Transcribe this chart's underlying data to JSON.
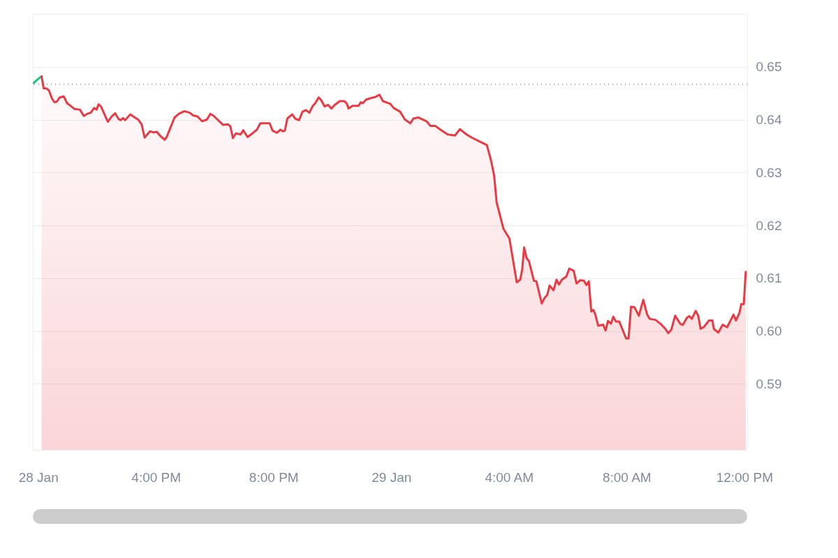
{
  "chart_data": {
    "type": "line",
    "series": [
      {
        "color": "#16c784",
        "x": [
          "--01-28T11:50",
          "--01-28T12:00",
          "--01-28T12:07"
        ],
        "values": [
          0.6469,
          0.6477,
          0.6482
        ]
      },
      {
        "type": "area",
        "color": "#ea3943",
        "x": [
          "--01-28T12:07",
          "--01-28T12:11",
          "--01-28T12:17",
          "--01-28T12:22",
          "--01-28T12:28",
          "--01-28T12:33",
          "--01-28T12:38",
          "--01-28T12:44",
          "--01-28T12:52",
          "--01-28T12:59",
          "--01-28T13:09",
          "--01-28T13:14",
          "--01-28T13:25",
          "--01-28T13:33",
          "--01-28T13:40",
          "--01-28T13:47",
          "--01-28T13:54",
          "--01-28T13:59",
          "--01-28T14:03",
          "--01-28T14:08",
          "--01-28T14:22",
          "--01-28T14:30",
          "--01-28T14:37",
          "--01-28T14:44",
          "--01-28T14:48",
          "--01-28T14:53",
          "--01-28T14:57",
          "--01-28T15:08",
          "--01-28T15:17",
          "--01-28T15:24",
          "--01-28T15:31",
          "--01-28T15:37",
          "--01-28T15:48",
          "--01-28T15:55",
          "--01-28T16:02",
          "--01-28T16:09",
          "--01-28T16:18",
          "--01-28T16:22",
          "--01-28T16:28",
          "--01-28T16:38",
          "--01-28T16:47",
          "--01-28T16:58",
          "--01-28T17:09",
          "--01-28T17:16",
          "--01-28T17:25",
          "--01-28T17:34",
          "--01-28T17:44",
          "--01-28T17:51",
          "--01-28T17:58",
          "--01-28T18:17",
          "--01-28T18:27",
          "--01-28T18:32",
          "--01-28T18:37",
          "--01-28T18:43",
          "--01-28T18:53",
          "--01-28T18:58",
          "--01-28T19:07",
          "--01-28T19:17",
          "--01-28T19:26",
          "--01-28T19:33",
          "--01-28T19:43",
          "--01-28T19:52",
          "--01-28T19:58",
          "--01-28T20:07",
          "--01-28T20:14",
          "--01-28T20:19",
          "--01-28T20:23",
          "--01-28T20:28",
          "--01-28T20:38",
          "--01-28T20:44",
          "--01-28T20:52",
          "--01-28T20:59",
          "--01-28T21:06",
          "--01-28T21:13",
          "--01-28T21:20",
          "--01-28T21:25",
          "--01-28T21:32",
          "--01-28T21:37",
          "--01-28T21:44",
          "--01-28T21:51",
          "--01-28T21:58",
          "--01-28T22:05",
          "--01-28T22:15",
          "--01-28T22:24",
          "--01-28T22:29",
          "--01-28T22:33",
          "--01-28T22:41",
          "--01-28T22:53",
          "--01-28T22:58",
          "--01-28T23:02",
          "--01-28T23:09",
          "--01-28T23:19",
          "--01-28T23:28",
          "--01-28T23:36",
          "--01-28T23:43",
          "--01-28T23:58",
          "--01-29T00:05",
          "--01-29T00:18",
          "--01-29T00:28",
          "--01-29T00:39",
          "--01-29T00:45",
          "--01-29T00:55",
          "--01-29T01:12",
          "--01-29T01:20",
          "--01-29T01:30",
          "--01-29T01:42",
          "--01-29T01:55",
          "--01-29T02:10",
          "--01-29T02:20",
          "--01-29T02:32",
          "--01-29T02:44",
          "--01-29T03:04",
          "--01-29T03:15",
          "--01-29T03:24",
          "--01-29T03:30",
          "--01-29T03:35",
          "--01-29T03:49",
          "--01-29T04:01",
          "--01-29T04:16",
          "--01-29T04:23",
          "--01-29T04:27",
          "--01-29T04:31",
          "--01-29T04:36",
          "--01-29T04:41",
          "--01-29T04:51",
          "--01-29T04:56",
          "--01-29T05:07",
          "--01-29T05:13",
          "--01-29T05:18",
          "--01-29T05:23",
          "--01-29T05:31",
          "--01-29T05:37",
          "--01-29T05:42",
          "--01-29T05:48",
          "--01-29T05:57",
          "--01-29T06:03",
          "--01-29T06:12",
          "--01-29T06:18",
          "--01-29T06:25",
          "--01-29T06:33",
          "--01-29T06:38",
          "--01-29T06:43",
          "--01-29T06:48",
          "--01-29T06:52",
          "--01-29T06:56",
          "--01-29T07:02",
          "--01-29T07:12",
          "--01-29T07:17",
          "--01-29T07:22",
          "--01-29T07:28",
          "--01-29T07:33",
          "--01-29T07:38",
          "--01-29T07:45",
          "--01-29T07:52",
          "--01-29T07:59",
          "--01-29T08:04",
          "--01-29T08:09",
          "--01-29T08:16",
          "--01-29T08:25",
          "--01-29T08:34",
          "--01-29T08:42",
          "--01-29T08:47",
          "--01-29T08:59",
          "--01-29T09:11",
          "--01-29T09:19",
          "--01-29T09:25",
          "--01-29T09:31",
          "--01-29T09:39",
          "--01-29T09:50",
          "--01-29T09:55",
          "--01-29T10:03",
          "--01-29T10:08",
          "--01-29T10:13",
          "--01-29T10:21",
          "--01-29T10:26",
          "--01-29T10:31",
          "--01-29T10:38",
          "--01-29T10:48",
          "--01-29T10:55",
          "--01-29T10:58",
          "--01-29T11:07",
          "--01-29T11:16",
          "--01-29T11:25",
          "--01-29T11:38",
          "--01-29T11:43",
          "--01-29T11:50",
          "--01-29T11:54",
          "--01-29T11:59",
          "--01-29T12:03"
        ],
        "values": [
          0.6482,
          0.6459,
          0.6459,
          0.6455,
          0.644,
          0.6433,
          0.6434,
          0.6442,
          0.6444,
          0.6431,
          0.6424,
          0.642,
          0.6419,
          0.6407,
          0.6411,
          0.6413,
          0.6422,
          0.6419,
          0.6429,
          0.6425,
          0.6396,
          0.6406,
          0.6412,
          0.6401,
          0.6399,
          0.6403,
          0.6399,
          0.641,
          0.6404,
          0.64,
          0.6391,
          0.6366,
          0.6378,
          0.6376,
          0.6377,
          0.6369,
          0.6362,
          0.6367,
          0.6381,
          0.6404,
          0.6411,
          0.6416,
          0.6413,
          0.6408,
          0.6406,
          0.6397,
          0.64,
          0.6411,
          0.6407,
          0.639,
          0.6391,
          0.6387,
          0.6365,
          0.6374,
          0.6372,
          0.638,
          0.6367,
          0.6374,
          0.6381,
          0.6393,
          0.6393,
          0.6393,
          0.6379,
          0.6375,
          0.6381,
          0.6378,
          0.6379,
          0.6402,
          0.641,
          0.6402,
          0.6399,
          0.6415,
          0.6418,
          0.6413,
          0.6426,
          0.6431,
          0.6442,
          0.6437,
          0.6425,
          0.6428,
          0.6421,
          0.6428,
          0.6435,
          0.6435,
          0.6431,
          0.6421,
          0.6426,
          0.6426,
          0.6433,
          0.6431,
          0.6438,
          0.6441,
          0.6443,
          0.6447,
          0.6435,
          0.643,
          0.6422,
          0.6415,
          0.64,
          0.6393,
          0.6402,
          0.6404,
          0.6397,
          0.6388,
          0.6388,
          0.638,
          0.6372,
          0.637,
          0.6382,
          0.6373,
          0.6366,
          0.6357,
          0.6352,
          0.6321,
          0.6293,
          0.6243,
          0.6193,
          0.6175,
          0.6092,
          0.6097,
          0.6116,
          0.6158,
          0.6138,
          0.6132,
          0.6095,
          0.6094,
          0.6052,
          0.6063,
          0.6068,
          0.6086,
          0.6077,
          0.6097,
          0.6088,
          0.6097,
          0.6103,
          0.6118,
          0.6114,
          0.609,
          0.6096,
          0.6095,
          0.6087,
          0.6094,
          0.6037,
          0.604,
          0.6032,
          0.601,
          0.6012,
          0.6001,
          0.6019,
          0.6014,
          0.6027,
          0.6018,
          0.6018,
          0.6002,
          0.5986,
          0.5986,
          0.6046,
          0.6045,
          0.6029,
          0.6059,
          0.6031,
          0.6023,
          0.6021,
          0.6012,
          0.6004,
          0.5996,
          0.6002,
          0.6029,
          0.6013,
          0.6012,
          0.6025,
          0.6028,
          0.6023,
          0.6038,
          0.6029,
          0.6004,
          0.6008,
          0.602,
          0.602,
          0.6004,
          0.5997,
          0.6012,
          0.6007,
          0.6031,
          0.602,
          0.6034,
          0.6051,
          0.6051,
          0.6112
        ]
      }
    ],
    "xlim": [
      "--01-28T11:49",
      "--01-29T12:06"
    ],
    "xticks": [
      {
        "value": "--01-28T12:00",
        "label": "28 Jan"
      },
      {
        "value": "--01-28T16:00",
        "label": "4:00 PM"
      },
      {
        "value": "--01-28T20:00",
        "label": "8:00 PM"
      },
      {
        "value": "--01-29T00:00",
        "label": "29 Jan"
      },
      {
        "value": "--01-29T04:00",
        "label": "4:00 AM"
      },
      {
        "value": "--01-29T08:00",
        "label": "8:00 AM"
      },
      {
        "value": "--01-29T12:00",
        "label": "12:00 PM"
      }
    ],
    "ylim": [
      0.5775,
      0.66
    ],
    "yticks": [
      0.59,
      {
        "value": 0.6,
        "label": "0.60"
      },
      0.61,
      0.62,
      0.63,
      0.64,
      0.65
    ],
    "ref_lines": [
      {
        "axis": "y",
        "value": 0.6467,
        "color": "#999999",
        "line_style": "dotted"
      }
    ],
    "grid": "y"
  }
}
